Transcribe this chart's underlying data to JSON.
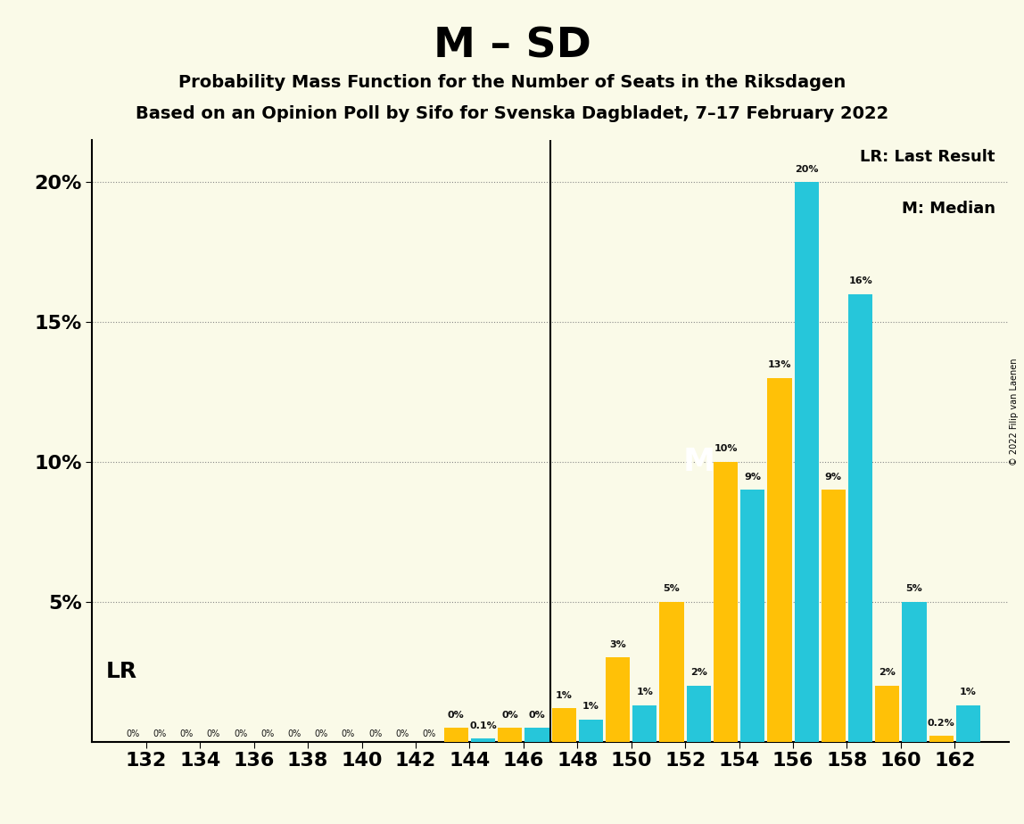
{
  "title": "M – SD",
  "subtitle1": "Probability Mass Function for the Number of Seats in the Riksdagen",
  "subtitle2": "Based on an Opinion Poll by Sifo for Svenska Dagbladet, 7–17 February 2022",
  "copyright": "© 2022 Filip van Laenen",
  "seats": [
    132,
    134,
    136,
    138,
    140,
    142,
    144,
    146,
    148,
    150,
    152,
    154,
    156,
    158,
    160,
    162
  ],
  "cyan_vals": [
    0.0,
    0.0,
    0.0,
    0.0,
    0.0,
    0.0,
    0.001,
    0.005,
    0.008,
    0.013,
    0.02,
    0.09,
    0.2,
    0.16,
    0.05,
    0.013
  ],
  "gold_vals": [
    0.0,
    0.0,
    0.0,
    0.0,
    0.0,
    0.0,
    0.005,
    0.005,
    0.012,
    0.03,
    0.05,
    0.1,
    0.13,
    0.09,
    0.02,
    0.002
  ],
  "cyan_color": "#26C6DA",
  "gold_color": "#FFC107",
  "bg_color": "#FAFAE8",
  "ylim_max": 0.215,
  "yticks": [
    0.05,
    0.1,
    0.15,
    0.2
  ],
  "ytick_labels": [
    "5%",
    "10%",
    "15%",
    "20%"
  ],
  "lr_seat": 147,
  "median_seat": 151,
  "median_label": "M",
  "lr_label": "LR",
  "legend_lr": "LR: Last Result",
  "legend_m": "M: Median",
  "title_fontsize": 34,
  "subtitle_fontsize": 14,
  "tick_fontsize": 16,
  "bar_label_fontsize": 8
}
